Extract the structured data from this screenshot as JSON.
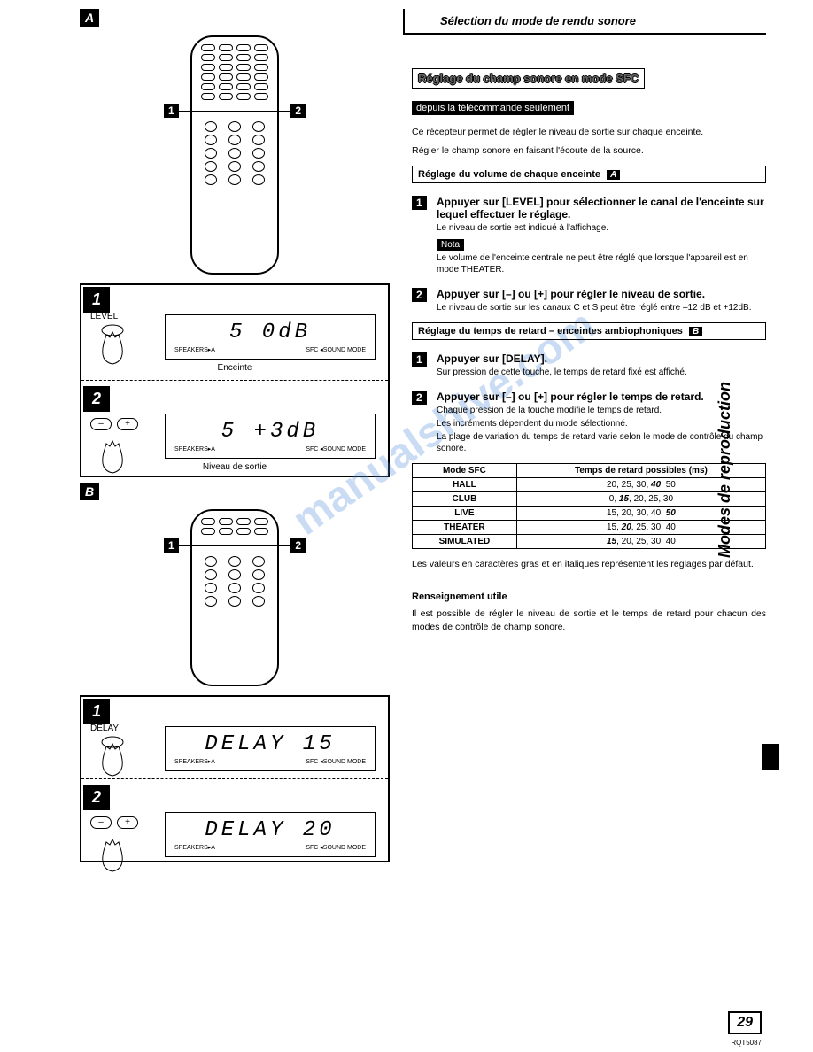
{
  "header": {
    "section_title": "Sélection du mode de rendu sonore"
  },
  "left": {
    "section_a": "A",
    "section_b": "B",
    "label_level": "LEVEL",
    "label_delay": "DELAY",
    "lcd_a1": "5    0dB",
    "lcd_a2": "5  +3dB",
    "lcd_b1": "DELAY  15",
    "lcd_b2": "DELAY  20",
    "lcd_speakers": "SPEAKERS▸A",
    "lcd_soundmode": "SFC ◂SOUND MODE",
    "caption_enceinte": "Enceinte",
    "caption_niveau": "Niveau de sortie",
    "step1": "1",
    "step2": "2"
  },
  "right": {
    "title_main": "Réglage du champ sonore en mode SFC",
    "subtitle_remote": "depuis la télécommande seulement",
    "intro1": "Ce récepteur permet de régler le niveau de sortie sur chaque enceinte.",
    "intro2": "Régler le champ sonore en faisant l'écoute de la source.",
    "box_volume": "Réglage du volume de chaque enceinte",
    "box_volume_letter": "A",
    "step1_num": "1",
    "step1_title": "Appuyer sur [LEVEL] pour sélectionner le canal de l'enceinte sur lequel effectuer le réglage.",
    "step1_body": "Le niveau de sortie est indiqué à l'affichage.",
    "nota_label": "Nota",
    "nota_text": "Le volume de l'enceinte centrale ne peut être réglé que lorsque l'appareil est en mode THEATER.",
    "step2_num": "2",
    "step2_title": "Appuyer sur [–] ou [+] pour régler le niveau de sortie.",
    "step2_body": "Le niveau de sortie sur les canaux C et S peut être réglé entre –12 dB et +12dB.",
    "box_delay": "Réglage du temps de retard – enceintes ambiophoniques",
    "box_delay_letter": "B",
    "stepb1_num": "1",
    "stepb1_title": "Appuyer sur [DELAY].",
    "stepb1_body": "Sur pression de cette touche, le temps de retard fixé est affiché.",
    "stepb2_num": "2",
    "stepb2_title": "Appuyer sur [–] ou [+] pour régler le temps de retard.",
    "stepb2_body1": "Chaque pression de la touche modifie le temps de retard.",
    "stepb2_body2": "Les incréments dépendent du mode sélectionné.",
    "stepb2_body3": "La plage de variation du temps de retard varie selon le mode de contrôle du champ sonore.",
    "table": {
      "col1": "Mode SFC",
      "col2": "Temps de retard possibles (ms)",
      "rows": [
        [
          "HALL",
          "20, 25, 30, <b><i>40</i></b>, 50"
        ],
        [
          "CLUB",
          "0, <b><i>15</i></b>, 20, 25, 30"
        ],
        [
          "LIVE",
          "15, 20, 30, 40, <b><i>50</i></b>"
        ],
        [
          "THEATER",
          "15, <b><i>20</i></b>, 25, 30, 40"
        ],
        [
          "SIMULATED",
          "<b><i>15</i></b>, 20, 25, 30, 40"
        ]
      ]
    },
    "table_note": "Les valeurs en caractères gras et en italiques représentent les réglages par défaut.",
    "useful_title": "Renseignement utile",
    "useful_body": "Il est possible de régler le niveau de sortie et le temps de retard pour chacun des modes de contrôle de champ sonore.",
    "side_tab": "Modes de reproduction",
    "page_num": "29",
    "doc_id": "RQT5087"
  },
  "watermark": "manualshive.com"
}
